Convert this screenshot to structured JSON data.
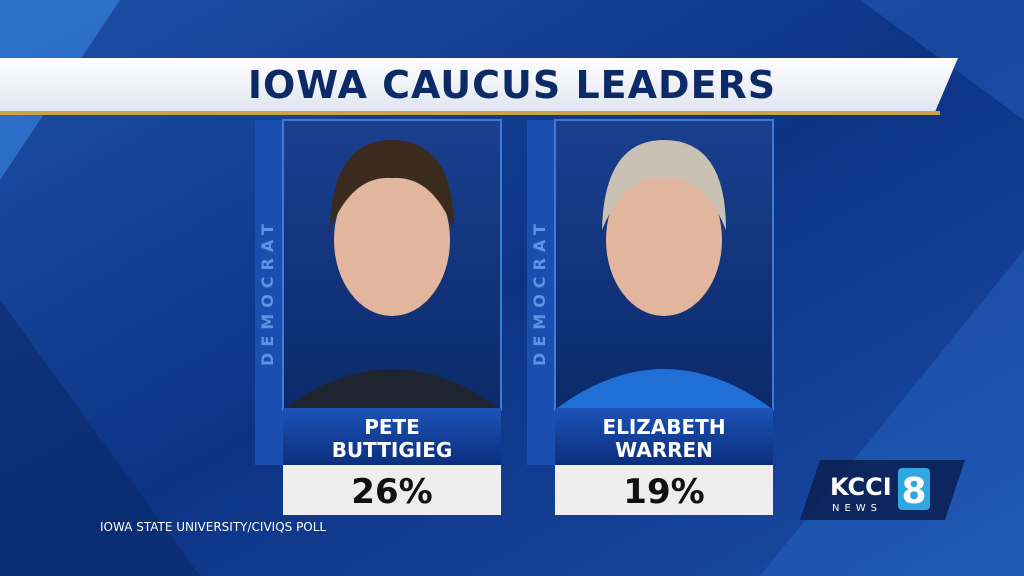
{
  "title": "IOWA CAUCUS LEADERS",
  "candidates": [
    {
      "party": "DEMOCRAT",
      "name_lines": [
        "PETE",
        "BUTTIGIEG"
      ],
      "result": "26%"
    },
    {
      "party": "DEMOCRAT",
      "name_lines": [
        "ELIZABETH",
        "WARREN"
      ],
      "result": "19%"
    }
  ],
  "source": "IOWA STATE UNIVERSITY/CIVIQS POLL",
  "logo": {
    "brand": "KCCI",
    "sub": "NEWS",
    "channel": "8"
  }
}
